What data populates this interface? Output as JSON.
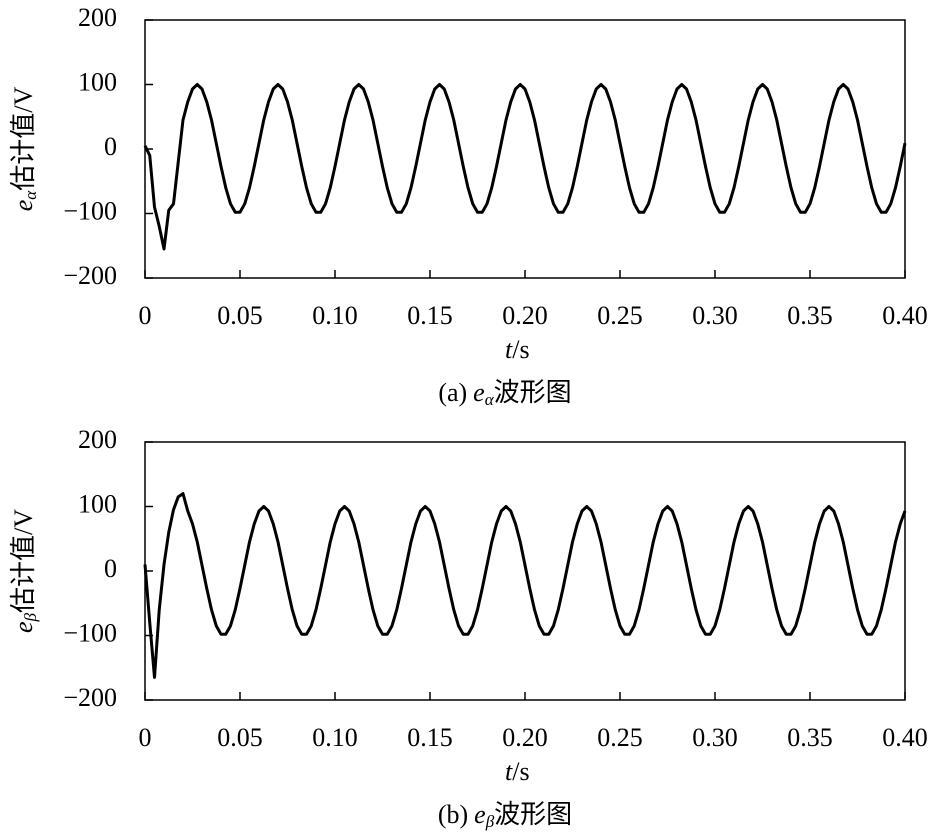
{
  "chart_data": [
    {
      "type": "line",
      "caption": {
        "prefix": "(a)",
        "var": "e",
        "sub": "α",
        "text": "波形图"
      },
      "xlabel": {
        "var": "t",
        "text": "/s"
      },
      "ylabel": {
        "var": "e",
        "sub": "α",
        "text": "估计值/V"
      },
      "xlim": [
        0,
        0.4
      ],
      "ylim": [
        -200,
        200
      ],
      "xticks": [
        0,
        0.05,
        {
          "value": 0.1,
          "label": "0.10"
        },
        0.15,
        {
          "value": 0.2,
          "label": "0.20"
        },
        0.25,
        {
          "value": 0.3,
          "label": "0.30"
        },
        0.35,
        {
          "value": 0.4,
          "label": "0.40"
        }
      ],
      "yticks": [
        {
          "value": -200,
          "label": "−200"
        },
        {
          "value": -100,
          "label": "−100"
        },
        0,
        100,
        200
      ],
      "x": [
        0,
        0.0025,
        0.005,
        0.0075,
        0.01,
        0.0125,
        0.015,
        0.0175,
        0.02,
        0.0225,
        0.025,
        0.0275,
        0.03,
        0.0325,
        0.035,
        0.0375,
        0.04,
        0.0425,
        0.045,
        0.0475,
        0.05,
        0.0525,
        0.055,
        0.0575,
        0.06,
        0.0625,
        0.065,
        0.0675,
        0.07,
        0.0725,
        0.075,
        0.0775,
        0.08,
        0.0825,
        0.085,
        0.0875,
        0.09,
        0.0925,
        0.095,
        0.0975,
        0.1,
        0.1025,
        0.105,
        0.1075,
        0.11,
        0.1125,
        0.115,
        0.1175,
        0.12,
        0.1225,
        0.125,
        0.1275,
        0.13,
        0.1325,
        0.135,
        0.1375,
        0.14,
        0.1425,
        0.145,
        0.1475,
        0.15,
        0.1525,
        0.155,
        0.1575,
        0.16,
        0.1625,
        0.165,
        0.1675,
        0.17,
        0.1725,
        0.175,
        0.1775,
        0.18,
        0.1825,
        0.185,
        0.1875,
        0.19,
        0.1925,
        0.195,
        0.1975,
        0.2,
        0.2025,
        0.205,
        0.2075,
        0.21,
        0.2125,
        0.215,
        0.2175,
        0.22,
        0.2225,
        0.225,
        0.2275,
        0.23,
        0.2325,
        0.235,
        0.2375,
        0.24,
        0.2425,
        0.245,
        0.2475,
        0.25,
        0.2525,
        0.255,
        0.2575,
        0.26,
        0.2625,
        0.265,
        0.2675,
        0.27,
        0.2725,
        0.275,
        0.2775,
        0.28,
        0.2825,
        0.285,
        0.2875,
        0.29,
        0.2925,
        0.295,
        0.2975,
        0.3,
        0.3025,
        0.305,
        0.3075,
        0.31,
        0.3125,
        0.315,
        0.3175,
        0.32,
        0.3225,
        0.325,
        0.3275,
        0.33,
        0.3325,
        0.335,
        0.3375,
        0.34,
        0.3425,
        0.345,
        0.3475,
        0.35,
        0.3525,
        0.355,
        0.3575,
        0.36,
        0.3625,
        0.365,
        0.3675,
        0.37,
        0.3725,
        0.375,
        0.3775,
        0.38,
        0.3825,
        0.385,
        0.3875,
        0.39,
        0.3925,
        0.395,
        0.3975,
        0.4
      ],
      "color": "#000000",
      "values": [
        5,
        -10,
        -90,
        -120,
        -155,
        -95,
        -85,
        -20,
        45,
        73,
        93,
        100,
        93,
        73,
        45,
        9,
        -27,
        -60,
        -85,
        -98,
        -98,
        -85,
        -60,
        -27,
        9,
        45,
        73,
        93,
        100,
        93,
        73,
        45,
        9,
        -27,
        -60,
        -85,
        -98,
        -98,
        -85,
        -60,
        -27,
        9,
        45,
        73,
        93,
        100,
        93,
        73,
        45,
        9,
        -27,
        -60,
        -85,
        -98,
        -98,
        -85,
        -60,
        -27,
        9,
        45,
        73,
        93,
        100,
        93,
        73,
        45,
        9,
        -27,
        -60,
        -85,
        -98,
        -98,
        -85,
        -60,
        -27,
        9,
        45,
        73,
        93,
        100,
        93,
        73,
        45,
        9,
        -27,
        -60,
        -85,
        -98,
        -98,
        -85,
        -60,
        -27,
        9,
        45,
        73,
        93,
        100,
        93,
        73,
        45,
        9,
        -27,
        -60,
        -85,
        -98,
        -98,
        -85,
        -60,
        -27,
        9,
        45,
        73,
        93,
        100,
        93,
        73,
        45,
        9,
        -27,
        -60,
        -85,
        -98,
        -98,
        -85,
        -60,
        -27,
        9,
        45,
        73,
        93,
        100,
        93,
        73,
        45,
        9,
        -27,
        -60,
        -85,
        -98,
        -98,
        -85,
        -60,
        -27,
        9,
        45,
        73,
        93,
        100,
        93,
        73,
        45,
        9,
        -27,
        -60,
        -85,
        -98,
        -98,
        -85,
        -60,
        -27,
        9
      ]
    },
    {
      "type": "line",
      "caption": {
        "prefix": "(b)",
        "var": "e",
        "sub": "β",
        "text": "波形图"
      },
      "xlabel": {
        "var": "t",
        "text": "/s"
      },
      "ylabel": {
        "var": "e",
        "sub": "β",
        "text": "估计值/V"
      },
      "xlim": [
        0,
        0.4
      ],
      "ylim": [
        -200,
        200
      ],
      "xticks": [
        0,
        0.05,
        {
          "value": 0.1,
          "label": "0.10"
        },
        0.15,
        {
          "value": 0.2,
          "label": "0.20"
        },
        0.25,
        {
          "value": 0.3,
          "label": "0.30"
        },
        0.35,
        {
          "value": 0.4,
          "label": "0.40"
        }
      ],
      "yticks": [
        {
          "value": -200,
          "label": "−200"
        },
        {
          "value": -100,
          "label": "−100"
        },
        0,
        100,
        200
      ],
      "x": [
        0,
        0.0025,
        0.005,
        0.0075,
        0.01,
        0.0125,
        0.015,
        0.0175,
        0.02,
        0.0225,
        0.025,
        0.0275,
        0.03,
        0.0325,
        0.035,
        0.0375,
        0.04,
        0.0425,
        0.045,
        0.0475,
        0.05,
        0.0525,
        0.055,
        0.0575,
        0.06,
        0.0625,
        0.065,
        0.0675,
        0.07,
        0.0725,
        0.075,
        0.0775,
        0.08,
        0.0825,
        0.085,
        0.0875,
        0.09,
        0.0925,
        0.095,
        0.0975,
        0.1,
        0.1025,
        0.105,
        0.1075,
        0.11,
        0.1125,
        0.115,
        0.1175,
        0.12,
        0.1225,
        0.125,
        0.1275,
        0.13,
        0.1325,
        0.135,
        0.1375,
        0.14,
        0.1425,
        0.145,
        0.1475,
        0.15,
        0.1525,
        0.155,
        0.1575,
        0.16,
        0.1625,
        0.165,
        0.1675,
        0.17,
        0.1725,
        0.175,
        0.1775,
        0.18,
        0.1825,
        0.185,
        0.1875,
        0.19,
        0.1925,
        0.195,
        0.1975,
        0.2,
        0.2025,
        0.205,
        0.2075,
        0.21,
        0.2125,
        0.215,
        0.2175,
        0.22,
        0.2225,
        0.225,
        0.2275,
        0.23,
        0.2325,
        0.235,
        0.2375,
        0.24,
        0.2425,
        0.245,
        0.2475,
        0.25,
        0.2525,
        0.255,
        0.2575,
        0.26,
        0.2625,
        0.265,
        0.2675,
        0.27,
        0.2725,
        0.275,
        0.2775,
        0.28,
        0.2825,
        0.285,
        0.2875,
        0.29,
        0.2925,
        0.295,
        0.2975,
        0.3,
        0.3025,
        0.305,
        0.3075,
        0.31,
        0.3125,
        0.315,
        0.3175,
        0.32,
        0.3225,
        0.325,
        0.3275,
        0.33,
        0.3325,
        0.335,
        0.3375,
        0.34,
        0.3425,
        0.345,
        0.3475,
        0.35,
        0.3525,
        0.355,
        0.3575,
        0.36,
        0.3625,
        0.365,
        0.3675,
        0.37,
        0.3725,
        0.375,
        0.3775,
        0.38,
        0.3825,
        0.385,
        0.3875,
        0.39,
        0.3925,
        0.395,
        0.3975,
        0.4
      ],
      "color": "#000000",
      "values": [
        10,
        -80,
        -165,
        -60,
        10,
        60,
        95,
        115,
        120,
        93,
        73,
        45,
        9,
        -27,
        -60,
        -85,
        -98,
        -98,
        -85,
        -60,
        -27,
        9,
        45,
        73,
        93,
        100,
        93,
        73,
        45,
        9,
        -27,
        -60,
        -85,
        -98,
        -98,
        -85,
        -60,
        -27,
        9,
        45,
        73,
        93,
        100,
        93,
        73,
        45,
        9,
        -27,
        -60,
        -85,
        -98,
        -98,
        -85,
        -60,
        -27,
        9,
        45,
        73,
        93,
        100,
        93,
        73,
        45,
        9,
        -27,
        -60,
        -85,
        -98,
        -98,
        -85,
        -60,
        -27,
        9,
        45,
        73,
        93,
        100,
        93,
        73,
        45,
        9,
        -27,
        -60,
        -85,
        -98,
        -98,
        -85,
        -60,
        -27,
        9,
        45,
        73,
        93,
        100,
        93,
        73,
        45,
        9,
        -27,
        -60,
        -85,
        -98,
        -98,
        -85,
        -60,
        -27,
        9,
        45,
        73,
        93,
        100,
        93,
        73,
        45,
        9,
        -27,
        -60,
        -85,
        -98,
        -98,
        -85,
        -60,
        -27,
        9,
        45,
        73,
        93,
        100,
        93,
        73,
        45,
        9,
        -27,
        -60,
        -85,
        -98,
        -98,
        -85,
        -60,
        -27,
        9,
        45,
        73,
        93,
        100,
        93,
        73,
        45,
        9,
        -27,
        -60,
        -85,
        -98,
        -98,
        -85,
        -60,
        -27,
        9,
        45,
        73,
        93
      ]
    }
  ]
}
